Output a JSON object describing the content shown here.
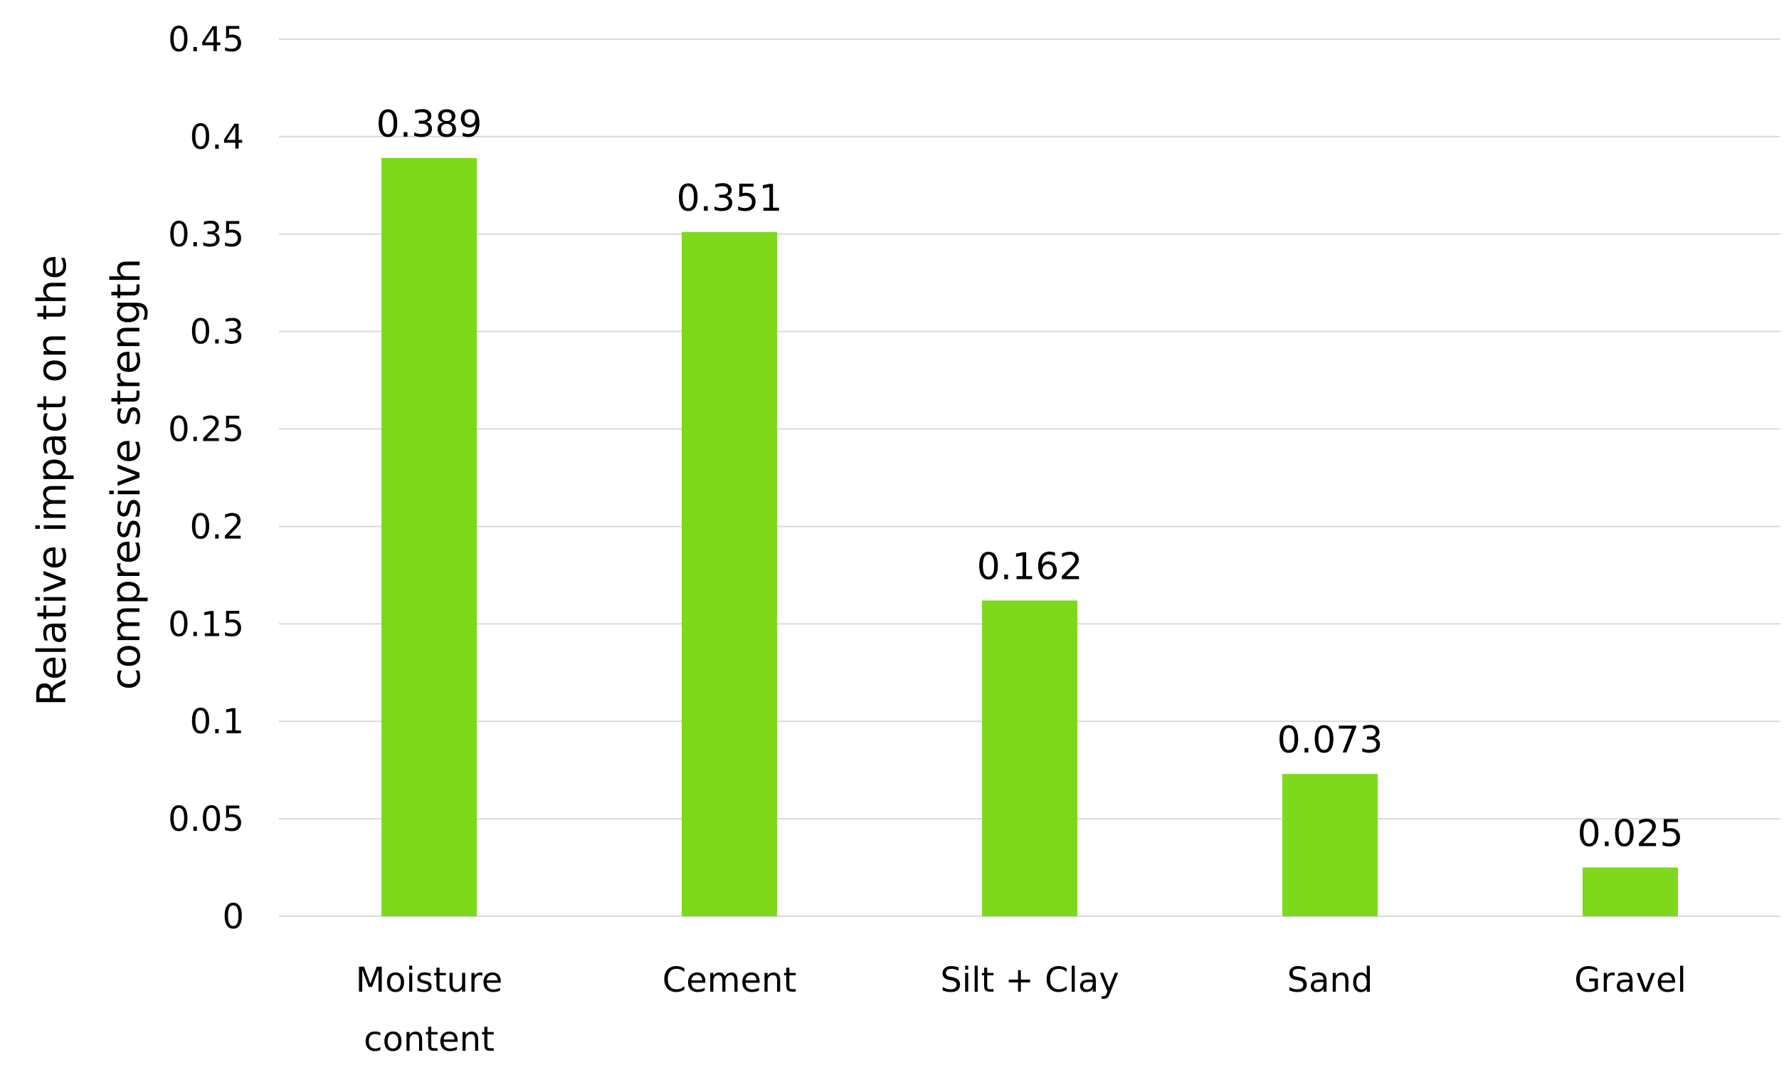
{
  "chart_data": {
    "type": "bar",
    "categories": [
      [
        "Moisture",
        "content"
      ],
      [
        "Cement"
      ],
      [
        "Silt + Clay"
      ],
      [
        "Sand"
      ],
      [
        "Gravel"
      ]
    ],
    "values": [
      0.389,
      0.351,
      0.162,
      0.073,
      0.025
    ],
    "data_labels": [
      "0.389",
      "0.351",
      "0.162",
      "0.073",
      "0.025"
    ],
    "ylabel_lines": [
      "Relative  impact on the",
      "compressive  strength"
    ],
    "ylim": [
      0,
      0.45
    ],
    "yticks": [
      0,
      0.05,
      0.1,
      0.15,
      0.2,
      0.25,
      0.3,
      0.35,
      0.4,
      0.45
    ],
    "ytick_labels": [
      "0",
      "0.05",
      "0.1",
      "0.15",
      "0.2",
      "0.25",
      "0.3",
      "0.35",
      "0.4",
      "0.45"
    ],
    "grid": true,
    "legend": "none",
    "colors": {
      "bar": "#7ed91c",
      "grid": "#d9d9d9",
      "text": "#000000"
    }
  }
}
